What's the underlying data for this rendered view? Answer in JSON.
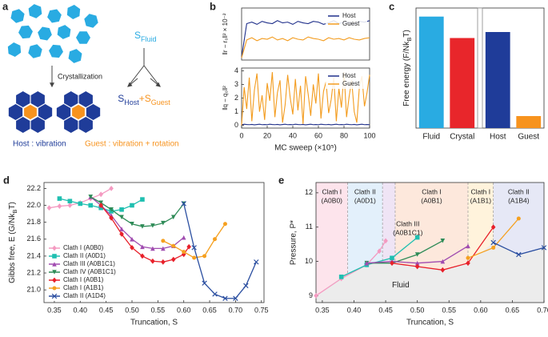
{
  "diagram": {
    "panel": "a",
    "arrow_label": "Crystallization",
    "s_fluid": [
      "S",
      "Fluid"
    ],
    "s_host": [
      "S",
      "Host"
    ],
    "plus": "+",
    "s_guest": [
      "S",
      "Guest"
    ],
    "host_note": "Host : vibration",
    "guest_note": "Guest : vibration + rotation"
  },
  "chart_data": [
    {
      "type": "line",
      "panel": "b",
      "ylabel": "‖r − r₀‖² × 10⁻²",
      "xlim": [
        0,
        100
      ],
      "ylim": [
        0,
        7
      ],
      "legend": "upper right",
      "x": [
        0,
        4,
        8,
        12,
        16,
        20,
        24,
        28,
        32,
        36,
        40,
        44,
        48,
        52,
        56,
        60,
        64,
        68,
        72,
        76,
        80,
        84,
        88,
        92,
        96,
        100
      ],
      "series": [
        {
          "name": "Host",
          "color": "#1f2f8a",
          "values": [
            0.4,
            4.9,
            5.1,
            4.8,
            5.2,
            5.0,
            4.9,
            5.3,
            5.0,
            5.1,
            4.8,
            5.2,
            5.0,
            4.9,
            5.2,
            5.1,
            4.8,
            5.0,
            5.3,
            4.9,
            5.1,
            5.0,
            4.8,
            5.2,
            5.1,
            5.3
          ]
        },
        {
          "name": "Guest",
          "color": "#f39c1f",
          "values": [
            0.3,
            2.7,
            3.0,
            2.6,
            2.9,
            2.8,
            3.1,
            2.7,
            2.9,
            2.6,
            3.0,
            2.8,
            2.7,
            3.1,
            2.9,
            2.8,
            2.6,
            3.0,
            2.8,
            2.9,
            2.7,
            3.0,
            2.8,
            2.7,
            2.9,
            3.0
          ]
        }
      ]
    },
    {
      "type": "line",
      "ylabel": "‖q − q₀‖²",
      "xlabel": "MC sweep (×10⁵)",
      "xlim": [
        0,
        100
      ],
      "ylim": [
        -0.2,
        4.2
      ],
      "legend": "upper right",
      "xticks": [
        0,
        20,
        40,
        60,
        80,
        100
      ],
      "yticks": [
        0,
        1,
        2,
        3,
        4
      ],
      "x": [
        0,
        2,
        4,
        6,
        8,
        10,
        12,
        14,
        16,
        18,
        20,
        22,
        24,
        26,
        28,
        30,
        32,
        34,
        36,
        38,
        40,
        42,
        44,
        46,
        48,
        50,
        52,
        54,
        56,
        58,
        60,
        62,
        64,
        66,
        68,
        70,
        72,
        74,
        76,
        78,
        80,
        82,
        84,
        86,
        88,
        90,
        92,
        94,
        96,
        98,
        100
      ],
      "series": [
        {
          "name": "Host",
          "color": "#1f2f8a",
          "values": [
            0.05,
            0.08,
            0.06,
            0.05,
            0.07,
            0.04,
            0.06,
            0.08,
            0.05,
            0.06,
            0.05,
            0.08,
            0.06,
            0.05,
            0.07,
            0.04,
            0.06,
            0.08,
            0.05,
            0.06,
            0.05,
            0.08,
            0.06,
            0.05,
            0.07,
            0.04,
            0.06,
            0.08,
            0.05,
            0.06,
            0.05,
            0.08,
            0.06,
            0.05,
            0.07,
            0.04,
            0.06,
            0.08,
            0.05,
            0.06,
            0.05,
            0.08,
            0.06,
            0.05,
            0.07,
            0.04,
            0.06,
            0.08,
            0.05,
            0.06,
            0.05
          ]
        },
        {
          "name": "Guest",
          "color": "#f39c1f",
          "values": [
            0,
            2.8,
            1.2,
            3.5,
            0.3,
            2.6,
            3.8,
            1.0,
            2.2,
            0.4,
            3.1,
            1.8,
            3.9,
            0.6,
            2.4,
            3.3,
            0.2,
            1.5,
            3.7,
            2.0,
            0.8,
            3.4,
            1.1,
            2.9,
            0.1,
            3.6,
            2.3,
            0.7,
            3.0,
            1.6,
            3.8,
            0.5,
            2.5,
            3.2,
            0.9,
            1.9,
            3.5,
            0.3,
            2.7,
            1.3,
            3.9,
            0.6,
            2.1,
            3.3,
            1.0,
            0.2,
            2.8,
            3.6,
            1.4,
            2.4,
            3.7
          ]
        }
      ]
    },
    {
      "type": "bar",
      "panel": "c",
      "ylabel": [
        "Free energy (F/Nk",
        "B",
        "T)"
      ],
      "ylim": [
        0,
        7
      ],
      "categories": [
        "Fluid",
        "Crystal",
        "Host",
        "Guest"
      ],
      "values": [
        6.5,
        5.25,
        5.6,
        0.7
      ],
      "colors": [
        "#29abe2",
        "#e8262b",
        "#1f3c99",
        "#f7931e"
      ]
    },
    {
      "type": "line",
      "panel": "d",
      "ylabel": [
        "Gibbs free, E (G/Nk",
        "B",
        "T)"
      ],
      "xlabel": "Truncation, S",
      "legend": "lower left",
      "xlim": [
        0.33,
        0.755
      ],
      "ylim": [
        20.85,
        22.27
      ],
      "xticks": [
        0.35,
        {
          "value": 0.4,
          "label": "0.40"
        },
        0.45,
        {
          "value": 0.5,
          "label": "0.50"
        },
        0.55,
        {
          "value": 0.6,
          "label": "0.60"
        },
        0.65,
        {
          "value": 0.7,
          "label": "0.70"
        },
        0.75
      ],
      "yticks": [
        {
          "value": 21,
          "label": "21.0"
        },
        21.2,
        21.4,
        21.6,
        21.8,
        {
          "value": 22,
          "label": "22.0"
        },
        22.2
      ],
      "series": [
        {
          "name": "Clath I (A0B0)",
          "color": "#f49ac1",
          "marker": "diamond",
          "x": [
            0.34,
            0.36,
            0.38,
            0.4,
            0.42,
            0.44,
            0.46
          ],
          "values": [
            21.97,
            21.99,
            22.0,
            22.03,
            22.08,
            22.13,
            22.2
          ]
        },
        {
          "name": "Clath II (A0D1)",
          "color": "#1fbfb0",
          "marker": "square",
          "x": [
            0.36,
            0.38,
            0.4,
            0.42,
            0.44,
            0.46,
            0.48,
            0.5,
            0.52
          ],
          "values": [
            22.08,
            22.05,
            22.02,
            22.0,
            21.97,
            21.93,
            21.95,
            22.0,
            22.07
          ]
        },
        {
          "name": "Clath III (A0B1C1)",
          "color": "#a04cb0",
          "marker": "triangle",
          "x": [
            0.42,
            0.44,
            0.46,
            0.48,
            0.5,
            0.52,
            0.54,
            0.56,
            0.58,
            0.6
          ],
          "values": [
            22.1,
            22.0,
            21.88,
            21.72,
            21.6,
            21.51,
            21.49,
            21.49,
            21.52,
            21.62
          ]
        },
        {
          "name": "Clath IV (A0B1C1)",
          "color": "#2e8b57",
          "marker": "triangle-down",
          "x": [
            0.42,
            0.44,
            0.46,
            0.48,
            0.5,
            0.52,
            0.54,
            0.56,
            0.58,
            0.6
          ],
          "values": [
            22.1,
            22.03,
            21.95,
            21.86,
            21.78,
            21.75,
            21.76,
            21.79,
            21.86,
            22.02
          ]
        },
        {
          "name": "Clath I (A0B1)",
          "color": "#e8202a",
          "marker": "diamond",
          "x": [
            0.44,
            0.46,
            0.48,
            0.5,
            0.52,
            0.54,
            0.56,
            0.58,
            0.6,
            0.61
          ],
          "values": [
            22.0,
            21.85,
            21.66,
            21.5,
            21.4,
            21.34,
            21.33,
            21.36,
            21.42,
            21.51
          ]
        },
        {
          "name": "Clath I (A1B1)",
          "color": "#f5a020",
          "marker": "circle",
          "x": [
            0.56,
            0.58,
            0.6,
            0.62,
            0.64,
            0.66,
            0.68
          ],
          "values": [
            21.58,
            21.52,
            21.45,
            21.38,
            21.4,
            21.6,
            21.78
          ]
        },
        {
          "name": "Clath II (A1D4)",
          "color": "#2a4ea0",
          "marker": "x",
          "x": [
            0.6,
            0.62,
            0.64,
            0.66,
            0.68,
            0.7,
            0.72,
            0.74
          ],
          "values": [
            22.02,
            21.5,
            21.08,
            20.95,
            20.9,
            20.9,
            21.05,
            21.33
          ]
        }
      ]
    },
    {
      "type": "line",
      "panel": "e",
      "ylabel": "Pressure, P*",
      "xlabel": "Truncation, S",
      "xlim": [
        0.34,
        0.7
      ],
      "ylim": [
        8.8,
        12.3
      ],
      "xticks": [
        0.35,
        {
          "value": 0.4,
          "label": "0.40"
        },
        0.45,
        {
          "value": 0.5,
          "label": "0.50"
        },
        0.55,
        {
          "value": 0.6,
          "label": "0.60"
        },
        0.65,
        {
          "value": 0.7,
          "label": "0.70"
        }
      ],
      "yticks": [
        9,
        10,
        11,
        12
      ],
      "regions": [
        {
          "label": "Clath I",
          "sublabel": "(A0B0)",
          "x": [
            0.34,
            0.39
          ],
          "color": "#fde4ec",
          "text_color": "#f08ab0"
        },
        {
          "label": "Clath II",
          "sublabel": "(A0D1)",
          "x": [
            0.39,
            0.445
          ],
          "color": "#e3f0fb",
          "text_color": "#2aa8d8"
        },
        {
          "label": "Clath III",
          "sublabel": "(A0B1C1)",
          "x": [
            0.445,
            0.465
          ],
          "color": "#efe4f5",
          "text_color": "#9b4fb8"
        },
        {
          "label": "Clath I",
          "sublabel": "(A0B1)",
          "x": [
            0.465,
            0.58
          ],
          "color": "#fde8dc",
          "text_color": "#e8202a"
        },
        {
          "label": "Clath I",
          "sublabel": "(A1B1)",
          "x": [
            0.58,
            0.62
          ],
          "color": "#fff3dc",
          "text_color": "#f5a020"
        },
        {
          "label": "Clath II",
          "sublabel": "(A1B4)",
          "x": [
            0.62,
            0.7
          ],
          "color": "#e6e8f6",
          "text_color": "#2a4ea0"
        }
      ],
      "fluid": {
        "label": "Fluid",
        "color": "#ececec",
        "x": [
          0.34,
          0.38,
          0.42,
          0.46,
          0.5,
          0.54,
          0.58,
          0.62,
          0.66,
          0.7
        ],
        "y": [
          9.0,
          9.55,
          9.93,
          9.95,
          9.85,
          9.75,
          9.95,
          10.55,
          10.2,
          10.4
        ]
      },
      "series": [
        {
          "color": "#f49ac1",
          "marker": "diamond",
          "x": [
            0.34,
            0.38,
            0.42,
            0.44,
            0.45
          ],
          "values": [
            9.0,
            9.5,
            9.9,
            10.3,
            10.6
          ]
        },
        {
          "color": "#1fbfb0",
          "marker": "square",
          "x": [
            0.38,
            0.42,
            0.46,
            0.5
          ],
          "values": [
            9.55,
            9.9,
            10.1,
            10.7
          ]
        },
        {
          "color": "#2e8b57",
          "marker": "triangle-down",
          "x": [
            0.42,
            0.46,
            0.5,
            0.54
          ],
          "values": [
            9.95,
            9.95,
            10.2,
            10.6
          ]
        },
        {
          "color": "#a04cb0",
          "marker": "triangle",
          "x": [
            0.42,
            0.46,
            0.5,
            0.54,
            0.58
          ],
          "values": [
            9.95,
            10.0,
            9.95,
            10.0,
            10.45
          ]
        },
        {
          "color": "#e8202a",
          "marker": "diamond",
          "x": [
            0.46,
            0.5,
            0.54,
            0.58,
            0.62
          ],
          "values": [
            9.95,
            9.85,
            9.75,
            9.95,
            11.0
          ]
        },
        {
          "color": "#f5a020",
          "marker": "circle",
          "x": [
            0.58,
            0.62,
            0.66
          ],
          "values": [
            10.1,
            10.4,
            11.25
          ]
        },
        {
          "color": "#2a4ea0",
          "marker": "x",
          "x": [
            0.62,
            0.66,
            0.7
          ],
          "values": [
            10.55,
            10.2,
            10.4
          ]
        }
      ]
    }
  ]
}
